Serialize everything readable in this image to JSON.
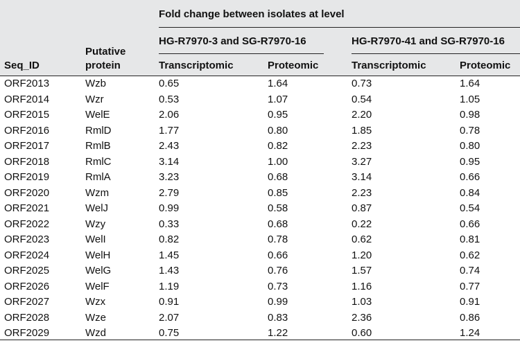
{
  "table": {
    "header": {
      "seq_id": "Seq_ID",
      "putative_line1": "Putative",
      "putative_line2": "protein",
      "fold_change": "Fold change between isolates at level",
      "group1": "HG-R7970-3 and SG-R7970-16",
      "group2": "HG-R7970-41 and SG-R7970-16",
      "transcriptomic": "Transcriptomic",
      "proteomic": "Proteomic"
    },
    "rows": [
      {
        "seq": "ORF2013",
        "protein": "Wzb",
        "g1_t": "0.65",
        "g1_p": "1.64",
        "g2_t": "0.73",
        "g2_p": "1.64"
      },
      {
        "seq": "ORF2014",
        "protein": "Wzr",
        "g1_t": "0.53",
        "g1_p": "1.07",
        "g2_t": "0.54",
        "g2_p": "1.05"
      },
      {
        "seq": "ORF2015",
        "protein": "WelE",
        "g1_t": "2.06",
        "g1_p": "0.95",
        "g2_t": "2.20",
        "g2_p": "0.98"
      },
      {
        "seq": "ORF2016",
        "protein": "RmlD",
        "g1_t": "1.77",
        "g1_p": "0.80",
        "g2_t": "1.85",
        "g2_p": "0.78"
      },
      {
        "seq": "ORF2017",
        "protein": "RmlB",
        "g1_t": "2.43",
        "g1_p": "0.82",
        "g2_t": "2.23",
        "g2_p": "0.80"
      },
      {
        "seq": "ORF2018",
        "protein": "RmlC",
        "g1_t": "3.14",
        "g1_p": "1.00",
        "g2_t": "3.27",
        "g2_p": "0.95"
      },
      {
        "seq": "ORF2019",
        "protein": "RmlA",
        "g1_t": "3.23",
        "g1_p": "0.68",
        "g2_t": "3.14",
        "g2_p": "0.66"
      },
      {
        "seq": "ORF2020",
        "protein": "Wzm",
        "g1_t": "2.79",
        "g1_p": "0.85",
        "g2_t": "2.23",
        "g2_p": "0.84"
      },
      {
        "seq": "ORF2021",
        "protein": "WelJ",
        "g1_t": "0.99",
        "g1_p": "0.58",
        "g2_t": "0.87",
        "g2_p": "0.54"
      },
      {
        "seq": "ORF2022",
        "protein": "Wzy",
        "g1_t": "0.33",
        "g1_p": "0.68",
        "g2_t": "0.22",
        "g2_p": "0.66"
      },
      {
        "seq": "ORF2023",
        "protein": "WelI",
        "g1_t": "0.82",
        "g1_p": "0.78",
        "g2_t": "0.62",
        "g2_p": "0.81"
      },
      {
        "seq": "ORF2024",
        "protein": "WelH",
        "g1_t": "1.45",
        "g1_p": "0.66",
        "g2_t": "1.20",
        "g2_p": "0.62"
      },
      {
        "seq": "ORF2025",
        "protein": "WelG",
        "g1_t": "1.43",
        "g1_p": "0.76",
        "g2_t": "1.57",
        "g2_p": "0.74"
      },
      {
        "seq": "ORF2026",
        "protein": "WelF",
        "g1_t": "1.19",
        "g1_p": "0.73",
        "g2_t": "1.16",
        "g2_p": "0.77"
      },
      {
        "seq": "ORF2027",
        "protein": "Wzx",
        "g1_t": "0.91",
        "g1_p": "0.99",
        "g2_t": "1.03",
        "g2_p": "0.91"
      },
      {
        "seq": "ORF2028",
        "protein": "Wze",
        "g1_t": "2.07",
        "g1_p": "0.83",
        "g2_t": "2.36",
        "g2_p": "0.86"
      },
      {
        "seq": "ORF2029",
        "protein": "Wzd",
        "g1_t": "0.75",
        "g1_p": "1.22",
        "g2_t": "0.60",
        "g2_p": "1.24"
      }
    ]
  }
}
